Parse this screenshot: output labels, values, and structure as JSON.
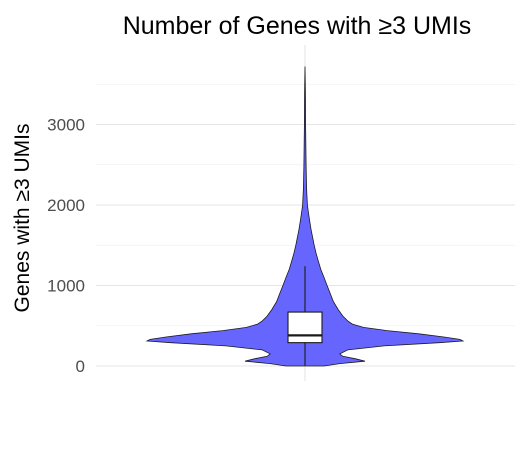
{
  "chart_data": {
    "type": "violin",
    "title": "Number of Genes with ≥3 UMIs",
    "xlabel": "",
    "ylabel": "Genes with ≥3 UMIs",
    "ylim": [
      -60,
      3800
    ],
    "yticks": [
      0,
      1000,
      2000,
      3000
    ],
    "ytick_labels": [
      "0",
      "1000",
      "2000",
      "3000"
    ],
    "grid": true,
    "fill_color": "#6666ff",
    "box_color": "#ffffff",
    "outline_color": "#1a1a1a",
    "density_profile": [
      {
        "y": 0,
        "w": 0.12
      },
      {
        "y": 30,
        "w": 0.22
      },
      {
        "y": 60,
        "w": 0.38
      },
      {
        "y": 90,
        "w": 0.32
      },
      {
        "y": 120,
        "w": 0.24
      },
      {
        "y": 150,
        "w": 0.22
      },
      {
        "y": 200,
        "w": 0.27
      },
      {
        "y": 250,
        "w": 0.5
      },
      {
        "y": 290,
        "w": 0.85
      },
      {
        "y": 310,
        "w": 1.0
      },
      {
        "y": 330,
        "w": 0.98
      },
      {
        "y": 360,
        "w": 0.88
      },
      {
        "y": 400,
        "w": 0.72
      },
      {
        "y": 440,
        "w": 0.52
      },
      {
        "y": 480,
        "w": 0.37
      },
      {
        "y": 520,
        "w": 0.3
      },
      {
        "y": 560,
        "w": 0.27
      },
      {
        "y": 620,
        "w": 0.24
      },
      {
        "y": 700,
        "w": 0.21
      },
      {
        "y": 800,
        "w": 0.18
      },
      {
        "y": 900,
        "w": 0.16
      },
      {
        "y": 1000,
        "w": 0.14
      },
      {
        "y": 1100,
        "w": 0.12
      },
      {
        "y": 1200,
        "w": 0.1
      },
      {
        "y": 1300,
        "w": 0.085
      },
      {
        "y": 1400,
        "w": 0.07
      },
      {
        "y": 1500,
        "w": 0.058
      },
      {
        "y": 1600,
        "w": 0.048
      },
      {
        "y": 1700,
        "w": 0.038
      },
      {
        "y": 1800,
        "w": 0.03
      },
      {
        "y": 1900,
        "w": 0.022
      },
      {
        "y": 2000,
        "w": 0.015
      },
      {
        "y": 2200,
        "w": 0.01
      },
      {
        "y": 2500,
        "w": 0.007
      },
      {
        "y": 2700,
        "w": 0.006
      },
      {
        "y": 3000,
        "w": 0.004
      },
      {
        "y": 3300,
        "w": 0.003
      },
      {
        "y": 3500,
        "w": 0.002
      },
      {
        "y": 3720,
        "w": 0.0
      }
    ],
    "boxplot": {
      "whisker_low": 5,
      "q1": 290,
      "median": 380,
      "q3": 670,
      "whisker_high": 1240
    }
  }
}
